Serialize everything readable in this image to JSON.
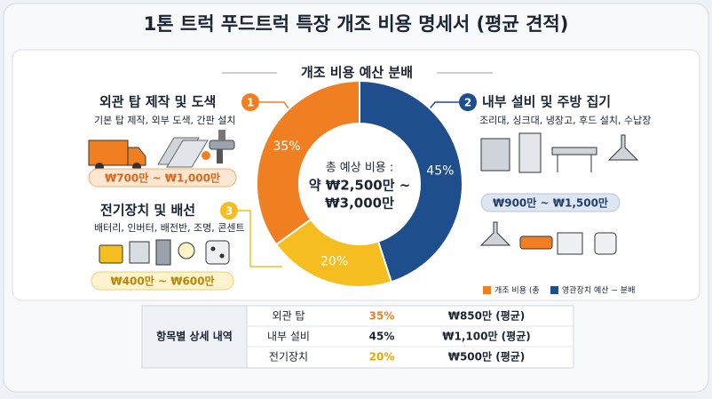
{
  "title": "1톤 트럭 푸드트럭 특장 개조 비용 명세서 (평균 견적)",
  "chart_data": {
    "type": "donut",
    "title": "개조 비용 예산 분배",
    "values": [
      45,
      20,
      35
    ],
    "value_labels": [
      "45%",
      "20%",
      "35%"
    ],
    "colors": [
      "#1f4e8c",
      "#f5bd1f",
      "#f07f22"
    ],
    "center_text": [
      "총 예상 비용 :",
      "약 ₩2,500만 ~",
      "₩3,000만"
    ]
  },
  "callouts": [
    {
      "badge": "1",
      "title": "외관 탑 제작 및 도색",
      "items": "기본 탑 제작, 외부 도색, 간판 설치",
      "price": "₩700만 ~ ₩1,000만"
    },
    {
      "badge": "2",
      "title": "내부 설비 및 주방 집기",
      "items": "조리대, 싱크대, 냉장고, 후드 설치, 수납장",
      "price": "₩900만 ~ ₩1,500만"
    },
    {
      "badge": "3",
      "title": "전기장치 및 배선",
      "items": "배터리, 인버터, 배전반, 조명, 콘센트",
      "price": "₩400만 ~ ₩600만"
    }
  ],
  "legend": [
    "개조 비용 (총",
    "영관장치 예산 ~ 분배"
  ],
  "table": {
    "header": "항목별 상세 내역",
    "rows": [
      [
        "외관 탑",
        "35%",
        "₩850만 (평균)"
      ],
      [
        "내부 설비",
        "45%",
        "₩1,100만 (평균)"
      ],
      [
        "전기장치",
        "20%",
        "₩500만 (평균)"
      ]
    ]
  }
}
